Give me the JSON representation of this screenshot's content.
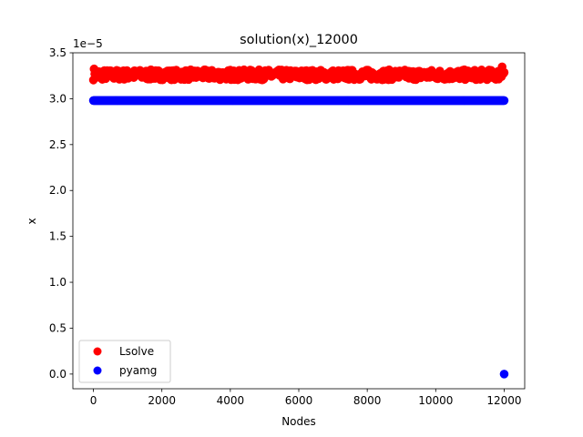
{
  "chart_data": {
    "type": "scatter",
    "title": "solution(x)_12000",
    "xlabel": "Nodes",
    "ylabel": "x",
    "y_multiplier_label": "1e−5",
    "xlim": [
      -600,
      12600
    ],
    "ylim": [
      -0.16,
      3.5
    ],
    "x_ticks": [
      0,
      2000,
      4000,
      6000,
      8000,
      10000,
      12000
    ],
    "x_tick_labels": [
      "0",
      "2000",
      "4000",
      "6000",
      "8000",
      "10000",
      "12000"
    ],
    "y_ticks": [
      0.0,
      0.5,
      1.0,
      1.5,
      2.0,
      2.5,
      3.0,
      3.5
    ],
    "y_tick_labels": [
      "0.0",
      "0.5",
      "1.0",
      "1.5",
      "2.0",
      "2.5",
      "3.0",
      "3.5"
    ],
    "grid": false,
    "legend_placement": "lower-left",
    "series": [
      {
        "name": "Lsolve",
        "color": "#ff0000",
        "x_range": [
          0,
          12000
        ],
        "n_points": 12000,
        "y_mean": 3.26,
        "y_band": [
          3.21,
          3.32
        ],
        "y_end_spikes": [
          3.36,
          3.19
        ]
      },
      {
        "name": "pyamg",
        "color": "#0000ff",
        "x_range": [
          0,
          12000
        ],
        "n_points": 12000,
        "y_mean": 2.98,
        "y_band": [
          2.98,
          2.98
        ],
        "y_end_spikes": [
          2.98,
          2.98
        ],
        "outlier": {
          "x": 12000,
          "y": 0.0
        }
      }
    ]
  }
}
